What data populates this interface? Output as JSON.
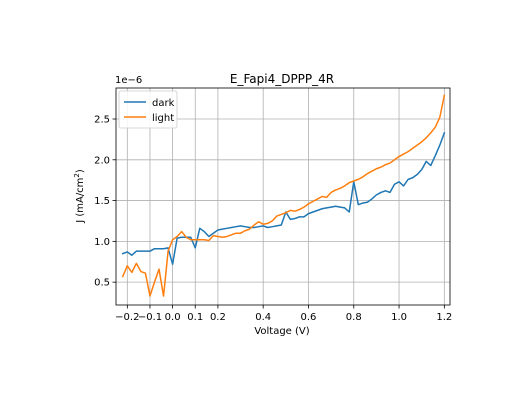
{
  "chart_data": {
    "type": "line",
    "title": "E_Fapi4_DPPP_4R",
    "xlabel": "Voltage (V)",
    "ylabel_main": "J (mA/cm",
    "ylabel_sup": "2",
    "ylabel_close": ")",
    "offset_text": "1e−6",
    "xlim": [
      -0.25,
      1.225
    ],
    "ylim": [
      0.22,
      2.88
    ],
    "xticks": [
      -0.2,
      -0.1,
      0.0,
      0.1,
      0.2,
      0.4,
      0.6,
      0.8,
      1.0,
      1.2
    ],
    "xtick_labels": [
      "−0.2",
      "−0.1",
      "0.0",
      "0.1",
      "0.2",
      "0.4",
      "0.6",
      "0.8",
      "1.0",
      "1.2"
    ],
    "yticks": [
      0.5,
      1.0,
      1.5,
      2.0,
      2.5
    ],
    "ytick_labels": [
      "0.5",
      "1.0",
      "1.5",
      "2.0",
      "2.5"
    ],
    "grid": true,
    "legend_position": "upper-left",
    "series": [
      {
        "name": "dark",
        "color": "#1f77b4",
        "x": [
          -0.22,
          -0.2,
          -0.18,
          -0.16,
          -0.14,
          -0.12,
          -0.1,
          -0.08,
          -0.06,
          -0.04,
          -0.02,
          0.0,
          0.02,
          0.04,
          0.06,
          0.08,
          0.1,
          0.12,
          0.14,
          0.16,
          0.18,
          0.2,
          0.22,
          0.24,
          0.26,
          0.28,
          0.3,
          0.32,
          0.34,
          0.36,
          0.38,
          0.4,
          0.42,
          0.44,
          0.46,
          0.48,
          0.5,
          0.52,
          0.54,
          0.56,
          0.58,
          0.6,
          0.62,
          0.64,
          0.66,
          0.68,
          0.7,
          0.72,
          0.74,
          0.76,
          0.78,
          0.8,
          0.82,
          0.84,
          0.86,
          0.88,
          0.9,
          0.92,
          0.94,
          0.96,
          0.98,
          1.0,
          1.02,
          1.04,
          1.06,
          1.08,
          1.1,
          1.12,
          1.14,
          1.16,
          1.18,
          1.2
        ],
        "values": [
          0.85,
          0.87,
          0.83,
          0.88,
          0.88,
          0.88,
          0.88,
          0.91,
          0.91,
          0.91,
          0.92,
          0.72,
          1.04,
          1.05,
          1.05,
          1.05,
          0.92,
          1.16,
          1.12,
          1.06,
          1.1,
          1.14,
          1.15,
          1.16,
          1.17,
          1.18,
          1.19,
          1.18,
          1.17,
          1.17,
          1.18,
          1.19,
          1.17,
          1.18,
          1.19,
          1.2,
          1.36,
          1.27,
          1.28,
          1.3,
          1.3,
          1.34,
          1.36,
          1.38,
          1.4,
          1.41,
          1.42,
          1.43,
          1.42,
          1.41,
          1.36,
          1.73,
          1.45,
          1.47,
          1.48,
          1.52,
          1.57,
          1.6,
          1.62,
          1.6,
          1.7,
          1.73,
          1.68,
          1.76,
          1.78,
          1.82,
          1.88,
          1.98,
          1.93,
          2.05,
          2.18,
          2.33
        ]
      },
      {
        "name": "light",
        "color": "#ff7f0e",
        "x": [
          -0.22,
          -0.2,
          -0.18,
          -0.16,
          -0.14,
          -0.12,
          -0.1,
          -0.08,
          -0.06,
          -0.04,
          -0.02,
          0.0,
          0.02,
          0.04,
          0.06,
          0.08,
          0.1,
          0.12,
          0.14,
          0.16,
          0.18,
          0.2,
          0.22,
          0.24,
          0.26,
          0.28,
          0.3,
          0.32,
          0.34,
          0.36,
          0.38,
          0.4,
          0.42,
          0.44,
          0.46,
          0.48,
          0.5,
          0.52,
          0.54,
          0.56,
          0.58,
          0.6,
          0.62,
          0.64,
          0.66,
          0.68,
          0.7,
          0.72,
          0.74,
          0.76,
          0.78,
          0.8,
          0.82,
          0.84,
          0.86,
          0.88,
          0.9,
          0.92,
          0.94,
          0.96,
          0.98,
          1.0,
          1.02,
          1.04,
          1.06,
          1.08,
          1.1,
          1.12,
          1.14,
          1.16,
          1.18,
          1.2
        ],
        "values": [
          0.57,
          0.7,
          0.62,
          0.73,
          0.63,
          0.61,
          0.33,
          0.5,
          0.66,
          0.33,
          0.88,
          1.02,
          1.06,
          1.12,
          1.05,
          1.02,
          1.02,
          1.02,
          1.02,
          1.01,
          1.07,
          1.06,
          1.05,
          1.06,
          1.08,
          1.1,
          1.1,
          1.13,
          1.15,
          1.2,
          1.24,
          1.21,
          1.22,
          1.25,
          1.31,
          1.33,
          1.35,
          1.38,
          1.37,
          1.39,
          1.42,
          1.46,
          1.49,
          1.52,
          1.55,
          1.54,
          1.6,
          1.63,
          1.65,
          1.68,
          1.72,
          1.74,
          1.76,
          1.79,
          1.83,
          1.86,
          1.89,
          1.91,
          1.94,
          1.96,
          2.0,
          2.04,
          2.07,
          2.1,
          2.14,
          2.18,
          2.22,
          2.27,
          2.33,
          2.4,
          2.52,
          2.79
        ]
      }
    ]
  }
}
